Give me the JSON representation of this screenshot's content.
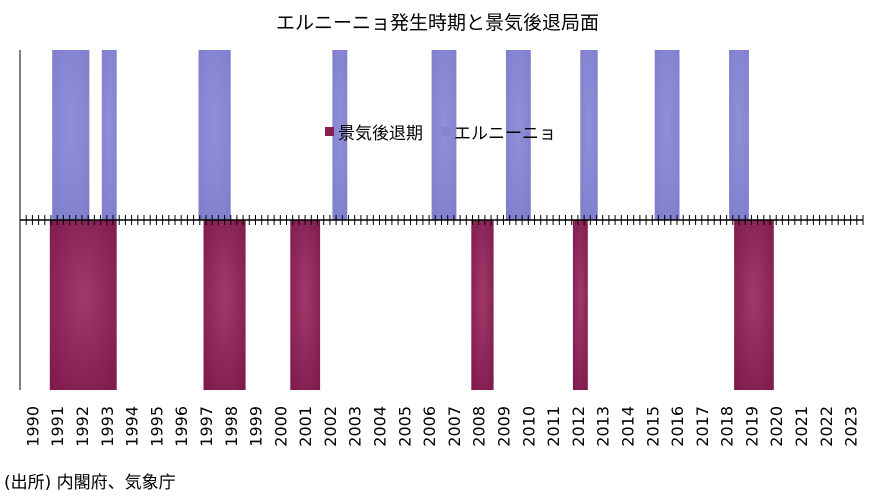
{
  "chart_data": {
    "type": "bar",
    "title": "エルニーニョ発生時期と景気後退局面",
    "x_tick_labels": [
      "1990",
      "1991",
      "1992",
      "1993",
      "1994",
      "1995",
      "1996",
      "1997",
      "1998",
      "1999",
      "2000",
      "2001",
      "2002",
      "2003",
      "2004",
      "2005",
      "2006",
      "2007",
      "2008",
      "2009",
      "2010",
      "2011",
      "2012",
      "2013",
      "2014",
      "2015",
      "2016",
      "2017",
      "2018",
      "2019",
      "2020",
      "2021",
      "2022",
      "2023"
    ],
    "xlim": [
      1990,
      2024
    ],
    "legend_position": "upper-center",
    "grid": false,
    "series": [
      {
        "name": "景気後退期",
        "color": "#8b1f54",
        "direction": "down",
        "periods": [
          {
            "start": 1991.2,
            "end": 1993.9
          },
          {
            "start": 1997.4,
            "end": 1999.1
          },
          {
            "start": 2000.9,
            "end": 2002.1
          },
          {
            "start": 2008.2,
            "end": 2009.1
          },
          {
            "start": 2012.3,
            "end": 2012.9
          },
          {
            "start": 2018.8,
            "end": 2020.4
          }
        ]
      },
      {
        "name": "エルニーニョ",
        "color": "#8585d1",
        "direction": "up",
        "periods": [
          {
            "start": 1991.3,
            "end": 1992.8
          },
          {
            "start": 1993.3,
            "end": 1993.9
          },
          {
            "start": 1997.2,
            "end": 1998.5
          },
          {
            "start": 2002.6,
            "end": 2003.2
          },
          {
            "start": 2006.6,
            "end": 2007.6
          },
          {
            "start": 2009.6,
            "end": 2010.6
          },
          {
            "start": 2012.6,
            "end": 2013.3
          },
          {
            "start": 2015.6,
            "end": 2016.6
          },
          {
            "start": 2018.6,
            "end": 2019.4
          }
        ]
      }
    ]
  },
  "source_note": "(出所) 内閣府、気象庁"
}
